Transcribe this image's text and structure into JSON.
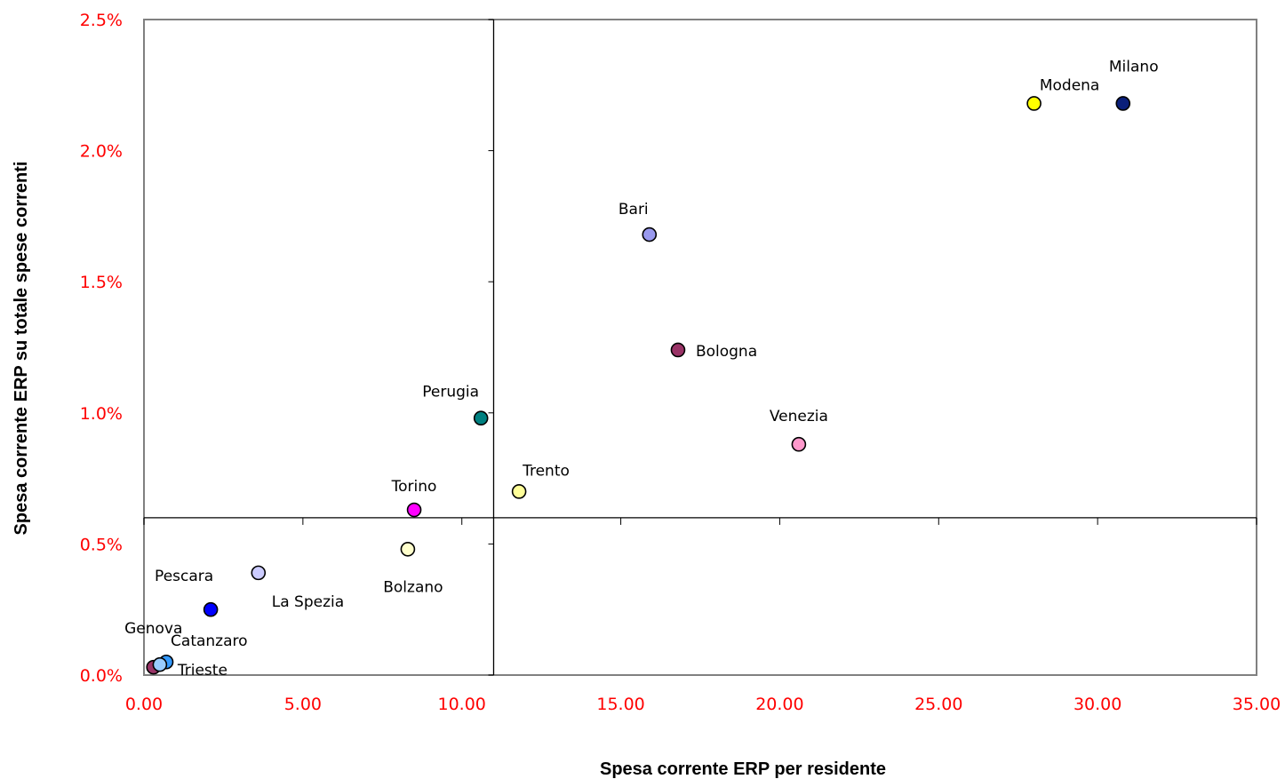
{
  "chart_data": {
    "type": "scatter",
    "title": "",
    "xlabel": "Spesa corrente ERP per residente",
    "ylabel": "Spesa corrente ERP su totale spese correnti",
    "xlim": [
      0,
      35
    ],
    "ylim": [
      0,
      2.5
    ],
    "x_ticks": [
      "0.00",
      "5.00",
      "10.00",
      "15.00",
      "20.00",
      "25.00",
      "30.00",
      "35.00"
    ],
    "y_ticks": [
      "0.0%",
      "0.5%",
      "1.0%",
      "1.5%",
      "2.0%",
      "2.5%"
    ],
    "quadrant_lines": {
      "x": 11.0,
      "y": 0.6
    },
    "grid": false,
    "legend": "none",
    "tick_label_color": "#ff0000",
    "points": [
      {
        "label": "Milano",
        "x": 30.8,
        "y": 2.18,
        "color": "#0a1f7a"
      },
      {
        "label": "Modena",
        "x": 28.0,
        "y": 2.18,
        "color": "#ffff00"
      },
      {
        "label": "Bari",
        "x": 15.9,
        "y": 1.68,
        "color": "#9999ee"
      },
      {
        "label": "Bologna",
        "x": 16.8,
        "y": 1.24,
        "color": "#993366"
      },
      {
        "label": "Venezia",
        "x": 20.6,
        "y": 0.88,
        "color": "#ff99cc"
      },
      {
        "label": "Perugia",
        "x": 10.6,
        "y": 0.98,
        "color": "#008080"
      },
      {
        "label": "Trento",
        "x": 11.8,
        "y": 0.7,
        "color": "#ffff99"
      },
      {
        "label": "Torino",
        "x": 8.5,
        "y": 0.63,
        "color": "#ff00ff"
      },
      {
        "label": "Bolzano",
        "x": 8.3,
        "y": 0.48,
        "color": "#ffffcc"
      },
      {
        "label": "La Spezia",
        "x": 3.6,
        "y": 0.39,
        "color": "#ccccff"
      },
      {
        "label": "Pescara",
        "x": 2.1,
        "y": 0.25,
        "color": "#0000ff"
      },
      {
        "label": "Genova",
        "x": 0.3,
        "y": 0.03,
        "color": "#993366"
      },
      {
        "label": "Catanzaro",
        "x": 0.7,
        "y": 0.05,
        "color": "#3399ff"
      },
      {
        "label": "Trieste",
        "x": 0.5,
        "y": 0.04,
        "color": "#99ccff"
      }
    ]
  }
}
